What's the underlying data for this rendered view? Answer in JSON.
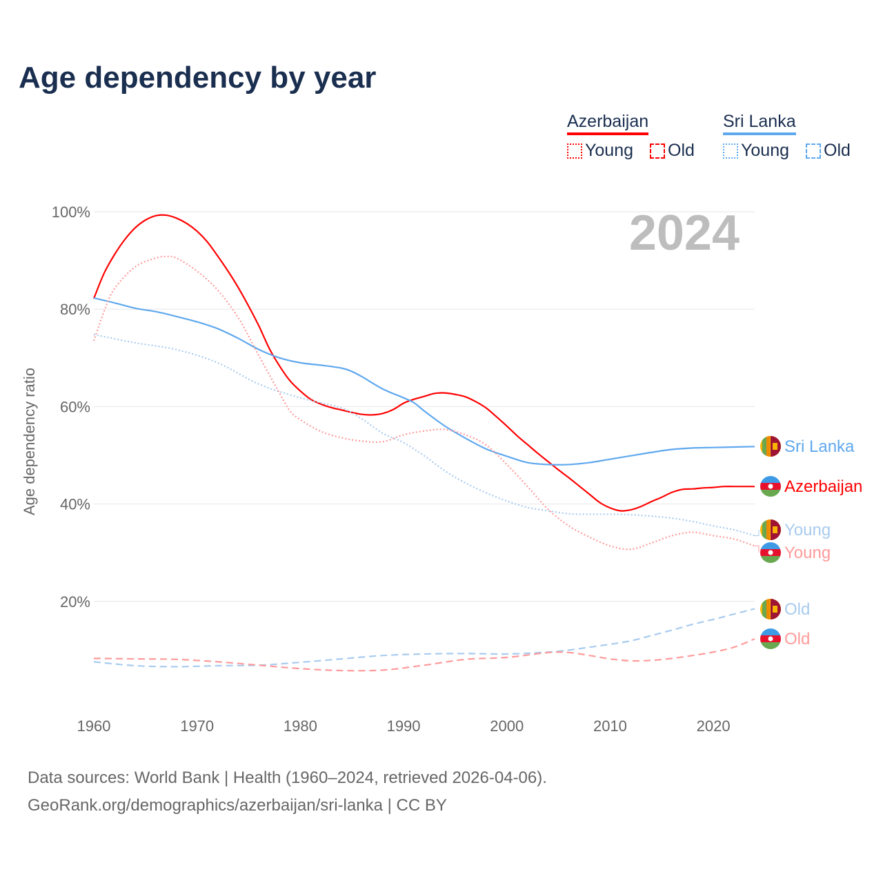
{
  "title": "Age dependency by year",
  "legend": {
    "groups": [
      {
        "name": "Azerbaijan",
        "color": "#ff0000",
        "items": [
          "Young",
          "Old"
        ]
      },
      {
        "name": "Sri Lanka",
        "color": "#5fa8ee",
        "items": [
          "Young",
          "Old"
        ]
      }
    ]
  },
  "footer": {
    "line1": "Data sources: World Bank | Health (1960–2024, retrieved 2026-04-06).",
    "line2": "GeoRank.org/demographics/azerbaijan/sri-lanka | CC BY"
  },
  "chart_data": {
    "type": "line",
    "title": "Age dependency by year",
    "xlabel": "",
    "ylabel": "Age dependency ratio",
    "xlim": [
      1960,
      2024
    ],
    "ylim": [
      0,
      100
    ],
    "xticks": [
      "1960",
      "1970",
      "1980",
      "1990",
      "2000",
      "2010",
      "2020"
    ],
    "yticks": [
      "20%",
      "40%",
      "60%",
      "80%",
      "100%"
    ],
    "year_watermark": "2024",
    "grid": true,
    "series": [
      {
        "name": "Azerbaijan",
        "label": "Azerbaijan",
        "style": "solid",
        "color": "#ff0000",
        "flag": "azerbaijan",
        "x": [
          1960,
          1961,
          1962,
          1963,
          1964,
          1965,
          1966,
          1967,
          1968,
          1969,
          1970,
          1971,
          1972,
          1973,
          1974,
          1975,
          1976,
          1977,
          1978,
          1979,
          1980,
          1981,
          1982,
          1983,
          1984,
          1985,
          1986,
          1987,
          1988,
          1989,
          1990,
          1991,
          1992,
          1993,
          1994,
          1995,
          1996,
          1997,
          1998,
          1999,
          2000,
          2001,
          2002,
          2003,
          2004,
          2005,
          2006,
          2007,
          2008,
          2009,
          2010,
          2011,
          2012,
          2013,
          2014,
          2015,
          2016,
          2017,
          2018,
          2019,
          2020,
          2021,
          2022,
          2023,
          2024
        ],
        "y": [
          82.2,
          87.4,
          91.2,
          94.3,
          96.7,
          98.3,
          99.2,
          99.3,
          98.7,
          97.6,
          96.0,
          93.8,
          90.9,
          87.8,
          84.4,
          80.6,
          76.5,
          71.9,
          68.3,
          65.3,
          63.2,
          61.5,
          60.5,
          59.8,
          59.3,
          58.8,
          58.4,
          58.3,
          58.6,
          59.4,
          60.7,
          61.5,
          62.1,
          62.7,
          62.8,
          62.5,
          62.0,
          61.0,
          59.7,
          57.9,
          56.0,
          54.0,
          52.2,
          50.4,
          48.7,
          47.0,
          45.4,
          43.7,
          42.0,
          40.3,
          39.2,
          38.6,
          38.8,
          39.5,
          40.5,
          41.4,
          42.4,
          43.0,
          43.1,
          43.3,
          43.4,
          43.6,
          43.6,
          43.6,
          43.6
        ]
      },
      {
        "name": "Sri Lanka",
        "label": "Sri Lanka",
        "style": "solid",
        "color": "#5fa8ee",
        "flag": "sri-lanka",
        "x": [
          1960,
          1962,
          1964,
          1966,
          1968,
          1970,
          1972,
          1974,
          1976,
          1978,
          1980,
          1982,
          1984,
          1985,
          1986,
          1988,
          1990,
          1991,
          1992,
          1994,
          1996,
          1998,
          2000,
          2002,
          2004,
          2006,
          2008,
          2010,
          2012,
          2014,
          2016,
          2018,
          2020,
          2022,
          2024
        ],
        "y": [
          82.3,
          81.3,
          80.2,
          79.5,
          78.5,
          77.4,
          76.0,
          74.0,
          71.7,
          70.0,
          69.0,
          68.5,
          67.9,
          67.2,
          66.1,
          63.6,
          61.8,
          60.8,
          59.1,
          56.0,
          53.5,
          51.3,
          49.8,
          48.5,
          48.1,
          48.1,
          48.5,
          49.2,
          49.9,
          50.6,
          51.2,
          51.5,
          51.6,
          51.7,
          51.8
        ]
      },
      {
        "name": "Sri Lanka Young",
        "label": "Young",
        "style": "dotted",
        "color": "#a8cbef",
        "flag": "sri-lanka",
        "x": [
          1960,
          1964,
          1968,
          1972,
          1976,
          1980,
          1984,
          1986,
          1988,
          1990,
          1992,
          1994,
          1996,
          1998,
          2000,
          2002,
          2004,
          2006,
          2008,
          2010,
          2012,
          2014,
          2016,
          2018,
          2020,
          2022,
          2024
        ],
        "y": [
          74.8,
          73.1,
          71.7,
          69.0,
          64.6,
          61.8,
          59.7,
          57.4,
          54.5,
          52.6,
          49.9,
          46.8,
          44.3,
          42.3,
          40.6,
          39.3,
          38.6,
          38.0,
          37.9,
          37.9,
          37.8,
          37.5,
          37.1,
          36.4,
          35.5,
          34.7,
          33.5
        ]
      },
      {
        "name": "Azerbaijan Young",
        "label": "Young",
        "style": "dotted",
        "color": "#ff9a9a",
        "flag": "azerbaijan",
        "x": [
          1960,
          1961,
          1962,
          1964,
          1966,
          1967,
          1968,
          1970,
          1972,
          1974,
          1976,
          1978,
          1979,
          1980,
          1982,
          1984,
          1986,
          1988,
          1990,
          1992,
          1994,
          1996,
          1998,
          2000,
          2002,
          2004,
          2006,
          2008,
          2010,
          2012,
          2014,
          2016,
          2018,
          2020,
          2022,
          2024
        ],
        "y": [
          73.5,
          79.6,
          84.2,
          88.7,
          90.5,
          90.8,
          90.5,
          87.8,
          83.9,
          78.2,
          70.4,
          62.7,
          59.1,
          57.3,
          54.9,
          53.6,
          52.9,
          52.8,
          54.2,
          55.0,
          55.3,
          54.2,
          52.1,
          48.1,
          43.6,
          38.9,
          35.5,
          33.2,
          31.4,
          30.7,
          32.0,
          33.5,
          34.2,
          33.5,
          32.8,
          31.4
        ]
      },
      {
        "name": "Sri Lanka Old",
        "label": "Old",
        "style": "dashed",
        "color": "#a8cbef",
        "flag": "sri-lanka",
        "x": [
          1960,
          1964,
          1968,
          1972,
          1976,
          1980,
          1984,
          1988,
          1992,
          1996,
          2000,
          2004,
          2006,
          2008,
          2010,
          2012,
          2014,
          2016,
          2018,
          2020,
          2022,
          2024
        ],
        "y": [
          7.6,
          6.8,
          6.6,
          6.8,
          6.9,
          7.5,
          8.2,
          8.9,
          9.2,
          9.3,
          9.2,
          9.6,
          10.0,
          10.6,
          11.2,
          11.9,
          13.0,
          14.1,
          15.3,
          16.3,
          17.4,
          18.5
        ]
      },
      {
        "name": "Azerbaijan Old",
        "label": "Old",
        "style": "dashed",
        "color": "#ff9a9a",
        "flag": "azerbaijan",
        "x": [
          1960,
          1964,
          1968,
          1972,
          1976,
          1980,
          1984,
          1988,
          1992,
          1996,
          2000,
          2004,
          2006,
          2008,
          2010,
          2012,
          2014,
          2016,
          2018,
          2020,
          2022,
          2024
        ],
        "y": [
          8.3,
          8.2,
          8.1,
          7.6,
          6.9,
          6.2,
          5.8,
          5.9,
          6.9,
          8.1,
          8.5,
          9.5,
          9.5,
          8.9,
          8.2,
          7.8,
          7.9,
          8.3,
          8.9,
          9.6,
          10.6,
          12.3
        ]
      }
    ]
  }
}
